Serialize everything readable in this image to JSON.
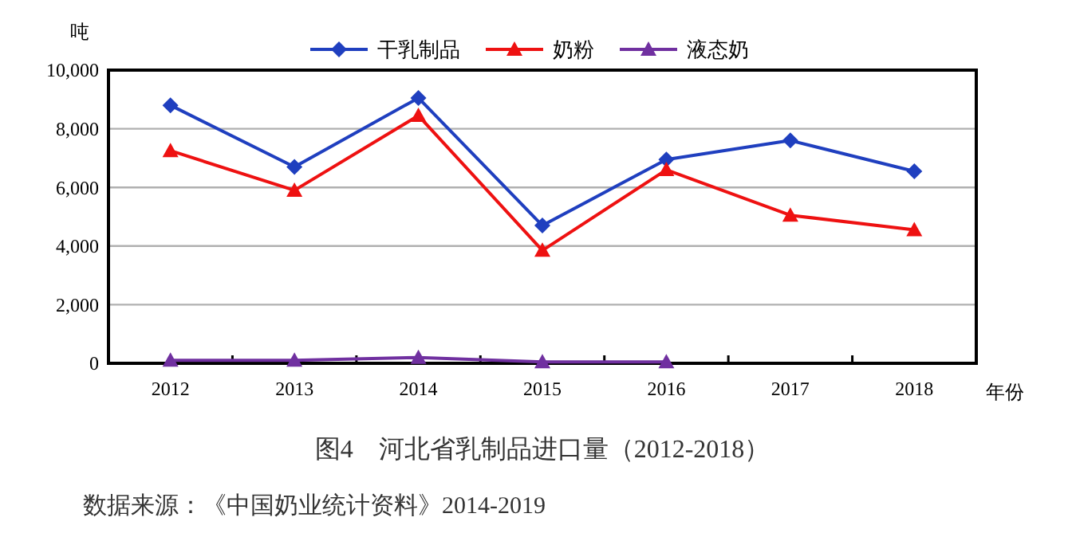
{
  "chart_data": {
    "type": "line",
    "title": "图4　河北省乳制品进口量（2012-2018）",
    "ylabel": "吨",
    "xlabel": "年份",
    "annotations": [
      "数据来源：《中国奶业统计资料》2014-2019"
    ],
    "categories": [
      "2012",
      "2013",
      "2014",
      "2015",
      "2016",
      "2017",
      "2018"
    ],
    "series": [
      {
        "name": "干乳制品",
        "color": "#1f3fbf",
        "marker": "diamond",
        "values": [
          8800,
          6700,
          9050,
          4700,
          6950,
          7600,
          6550
        ]
      },
      {
        "name": "奶粉",
        "color": "#ee1111",
        "marker": "triangle",
        "values": [
          7250,
          5900,
          8450,
          3850,
          6600,
          5050,
          4550
        ]
      },
      {
        "name": "液态奶",
        "color": "#7030a0",
        "marker": "triangle",
        "values": [
          100,
          100,
          200,
          50,
          50,
          null,
          null
        ]
      }
    ],
    "ylim": [
      0,
      10000
    ],
    "yticks": [
      {
        "value": 0,
        "label": "0"
      },
      {
        "value": 2000,
        "label": "2,000"
      },
      {
        "value": 4000,
        "label": "4,000"
      },
      {
        "value": 6000,
        "label": "6,000"
      },
      {
        "value": 8000,
        "label": "8,000"
      },
      {
        "value": 10000,
        "label": "10,000"
      }
    ],
    "grid": "y",
    "legend": "top",
    "line_style": "solid"
  }
}
